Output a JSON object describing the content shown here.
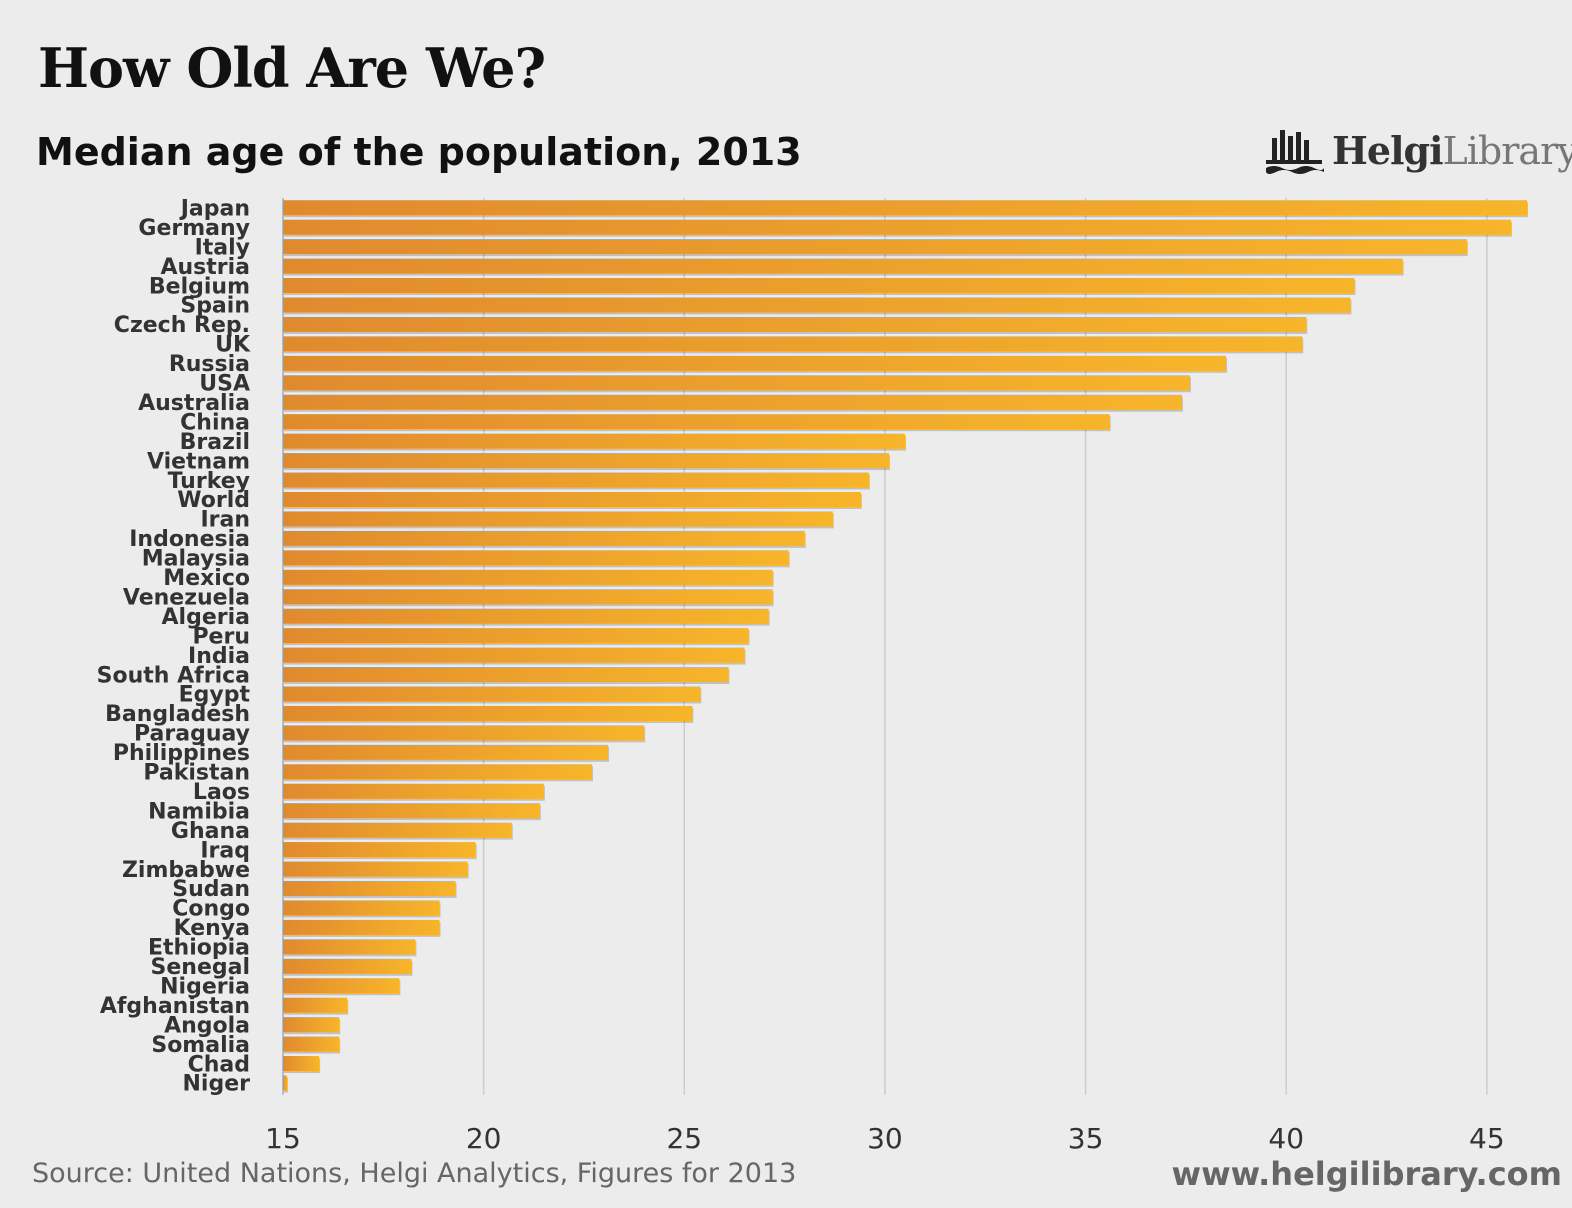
{
  "header": {
    "title": "How Old Are We?",
    "subtitle": "Median age of the population, 2013"
  },
  "logo": {
    "text_bold": "Helgi",
    "text_light": "Library.",
    "icon": "helgi-library-logo-icon"
  },
  "footer": {
    "source": "Source: United Nations, Helgi Analytics, Figures for 2013",
    "url": "www.helgilibrary.com"
  },
  "colors": {
    "bar_start": "#e08a2e",
    "bar_end": "#f7b52a",
    "gridline": "#cccccc",
    "background": "#ececec"
  },
  "chart_data": {
    "type": "bar",
    "orientation": "horizontal",
    "title": "Median age of the population, 2013",
    "xlabel": "",
    "ylabel": "",
    "xlim": [
      15,
      46
    ],
    "xticks": [
      15,
      20,
      25,
      30,
      35,
      40,
      45
    ],
    "grid": true,
    "categories": [
      "Japan",
      "Germany",
      "Italy",
      "Austria",
      "Belgium",
      "Spain",
      "Czech Rep.",
      "UK",
      "Russia",
      "USA",
      "Australia",
      "China",
      "Brazil",
      "Vietnam",
      "Turkey",
      "World",
      "Iran",
      "Indonesia",
      "Malaysia",
      "Mexico",
      "Venezuela",
      "Algeria",
      "Peru",
      "India",
      "South Africa",
      "Egypt",
      "Bangladesh",
      "Paraguay",
      "Philippines",
      "Pakistan",
      "Laos",
      "Namibia",
      "Ghana",
      "Iraq",
      "Zimbabwe",
      "Sudan",
      "Congo",
      "Kenya",
      "Ethiopia",
      "Senegal",
      "Nigeria",
      "Afghanistan",
      "Angola",
      "Somalia",
      "Chad",
      "Niger"
    ],
    "values": [
      46.0,
      45.6,
      44.5,
      42.9,
      41.7,
      41.6,
      40.5,
      40.4,
      38.5,
      37.6,
      37.4,
      35.6,
      30.5,
      30.1,
      29.6,
      29.4,
      28.7,
      28.0,
      27.6,
      27.2,
      27.2,
      27.1,
      26.6,
      26.5,
      26.1,
      25.4,
      25.2,
      24.0,
      23.1,
      22.7,
      21.5,
      21.4,
      20.7,
      19.8,
      19.6,
      19.3,
      18.9,
      18.9,
      18.3,
      18.2,
      17.9,
      16.6,
      16.4,
      16.4,
      15.9,
      15.1
    ]
  }
}
